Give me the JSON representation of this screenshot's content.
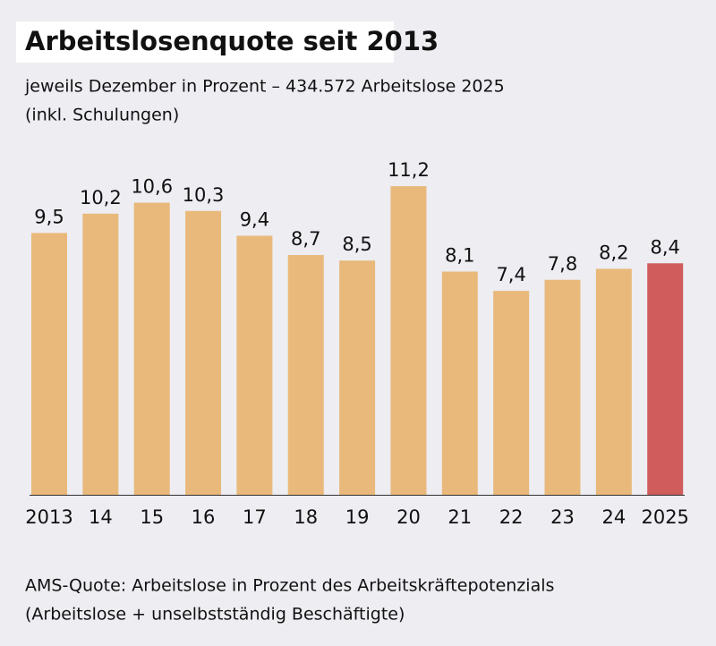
{
  "chart_data": {
    "type": "bar",
    "title": "Arbeitslosenquote seit 2013",
    "subtitle": [
      "jeweils Dezember in Prozent – 434.572 Arbeitslose 2025",
      "(inkl. Schulungen)"
    ],
    "categories": [
      "2013",
      "14",
      "15",
      "16",
      "17",
      "18",
      "19",
      "20",
      "21",
      "22",
      "23",
      "24",
      "2025"
    ],
    "values": [
      9.5,
      10.2,
      10.6,
      10.3,
      9.4,
      8.7,
      8.5,
      11.2,
      8.1,
      7.4,
      7.8,
      8.2,
      8.4
    ],
    "value_labels": [
      "9,5",
      "10,2",
      "10,6",
      "10,3",
      "9,4",
      "8,7",
      "8,5",
      "11,2",
      "8,1",
      "7,4",
      "7,8",
      "8,2",
      "8,4"
    ],
    "colors": [
      "#e9b97b",
      "#e9b97b",
      "#e9b97b",
      "#e9b97b",
      "#e9b97b",
      "#e9b97b",
      "#e9b97b",
      "#e9b97b",
      "#e9b97b",
      "#e9b97b",
      "#e9b97b",
      "#e9b97b",
      "#d05c5c"
    ],
    "footnote": [
      "AMS-Quote: Arbeitslose in Prozent des Arbeitskräftepotenzials",
      "(Arbeitslose + unselbstständig Beschäftigte)"
    ]
  }
}
